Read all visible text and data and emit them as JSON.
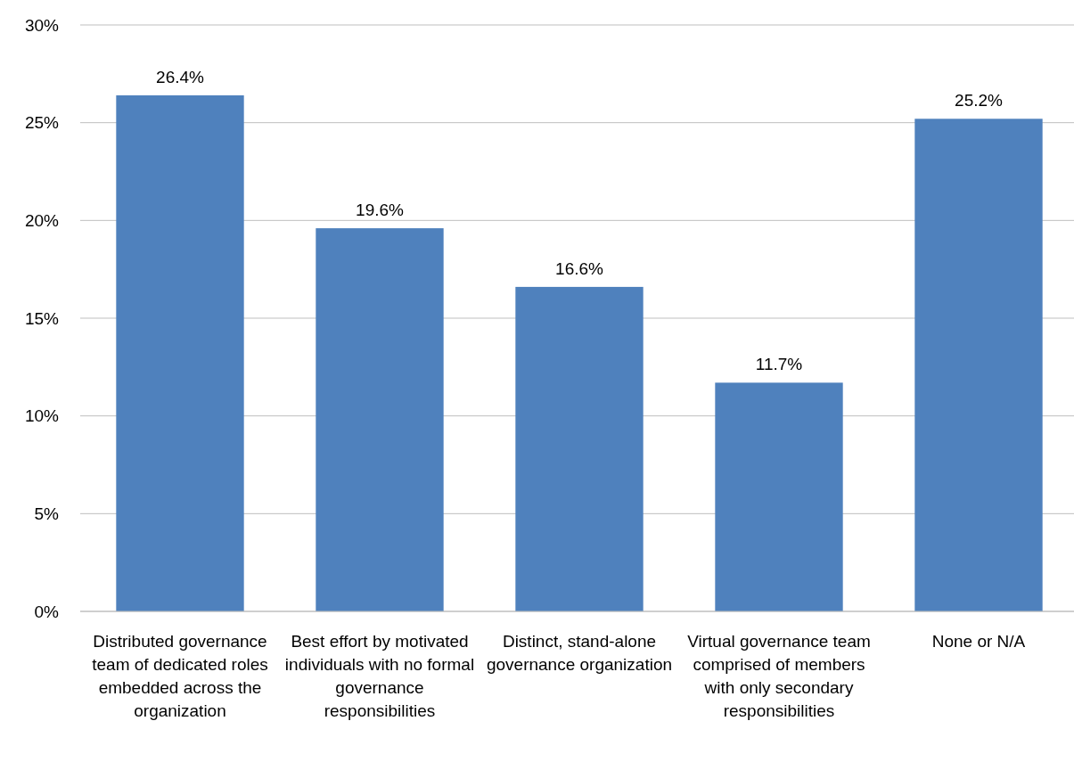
{
  "chart_data": {
    "type": "bar",
    "categories": [
      "Distributed governance team of dedicated roles embedded across the organization",
      "Best effort by motivated individuals with no formal governance responsibilities",
      "Distinct, stand-alone governance organization",
      "Virtual governance team comprised of members with only secondary responsibilities",
      "None or N/A"
    ],
    "values": [
      26.4,
      19.6,
      16.6,
      11.7,
      25.2
    ],
    "value_labels": [
      "26.4%",
      "19.6%",
      "16.6%",
      "11.7%",
      "25.2%"
    ],
    "color": "#4f81bd",
    "ylim": [
      0,
      30
    ],
    "yticks": [
      {
        "value": 0,
        "label": "0%"
      },
      {
        "value": 5,
        "label": "5%"
      },
      {
        "value": 10,
        "label": "10%"
      },
      {
        "value": 15,
        "label": "15%"
      },
      {
        "value": 20,
        "label": "20%"
      },
      {
        "value": 25,
        "label": "25%"
      },
      {
        "value": 30,
        "label": "30%"
      }
    ],
    "grid": "y"
  }
}
